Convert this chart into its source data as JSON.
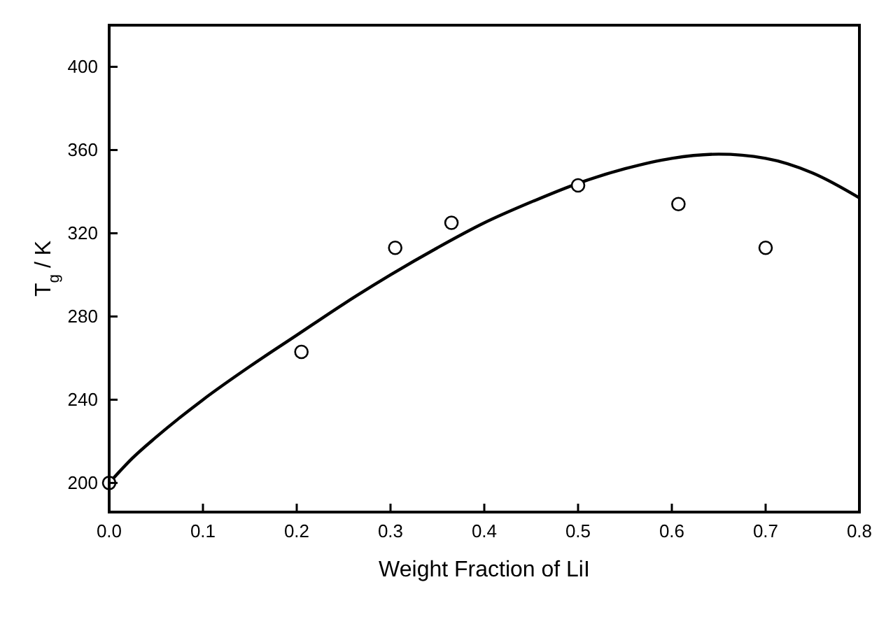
{
  "chart_data": {
    "type": "scatter",
    "xlabel": "Weight Fraction of LiI",
    "ylabel": "T$_{g}$ / K",
    "xlim": [
      0,
      0.8
    ],
    "ylim": [
      186,
      420
    ],
    "xticks": [
      {
        "value": 0,
        "label": "0.0"
      },
      0.1,
      0.2,
      0.3,
      0.4,
      0.5,
      0.6,
      0.7,
      0.8
    ],
    "yticks": [
      200,
      240,
      280,
      320,
      360,
      400
    ],
    "grid": false,
    "series": [
      {
        "type": "line",
        "color": "#000000",
        "marker": "none",
        "line_style": "solid",
        "x": [
          0,
          0.025,
          0.05,
          0.1,
          0.15,
          0.2,
          0.25,
          0.3,
          0.35,
          0.4,
          0.45,
          0.5,
          0.55,
          0.6,
          0.65,
          0.7,
          0.75,
          0.8
        ],
        "values": [
          200,
          212,
          222,
          240,
          256,
          271,
          286,
          300,
          313,
          325,
          335,
          344,
          351,
          356,
          358,
          356,
          349,
          337
        ]
      },
      {
        "color": "#000000",
        "marker": "circle",
        "x": [
          0,
          0.205,
          0.305,
          0.365,
          0.5,
          0.607,
          0.7
        ],
        "values": [
          200,
          263,
          313,
          325,
          343,
          334,
          313
        ]
      }
    ]
  }
}
